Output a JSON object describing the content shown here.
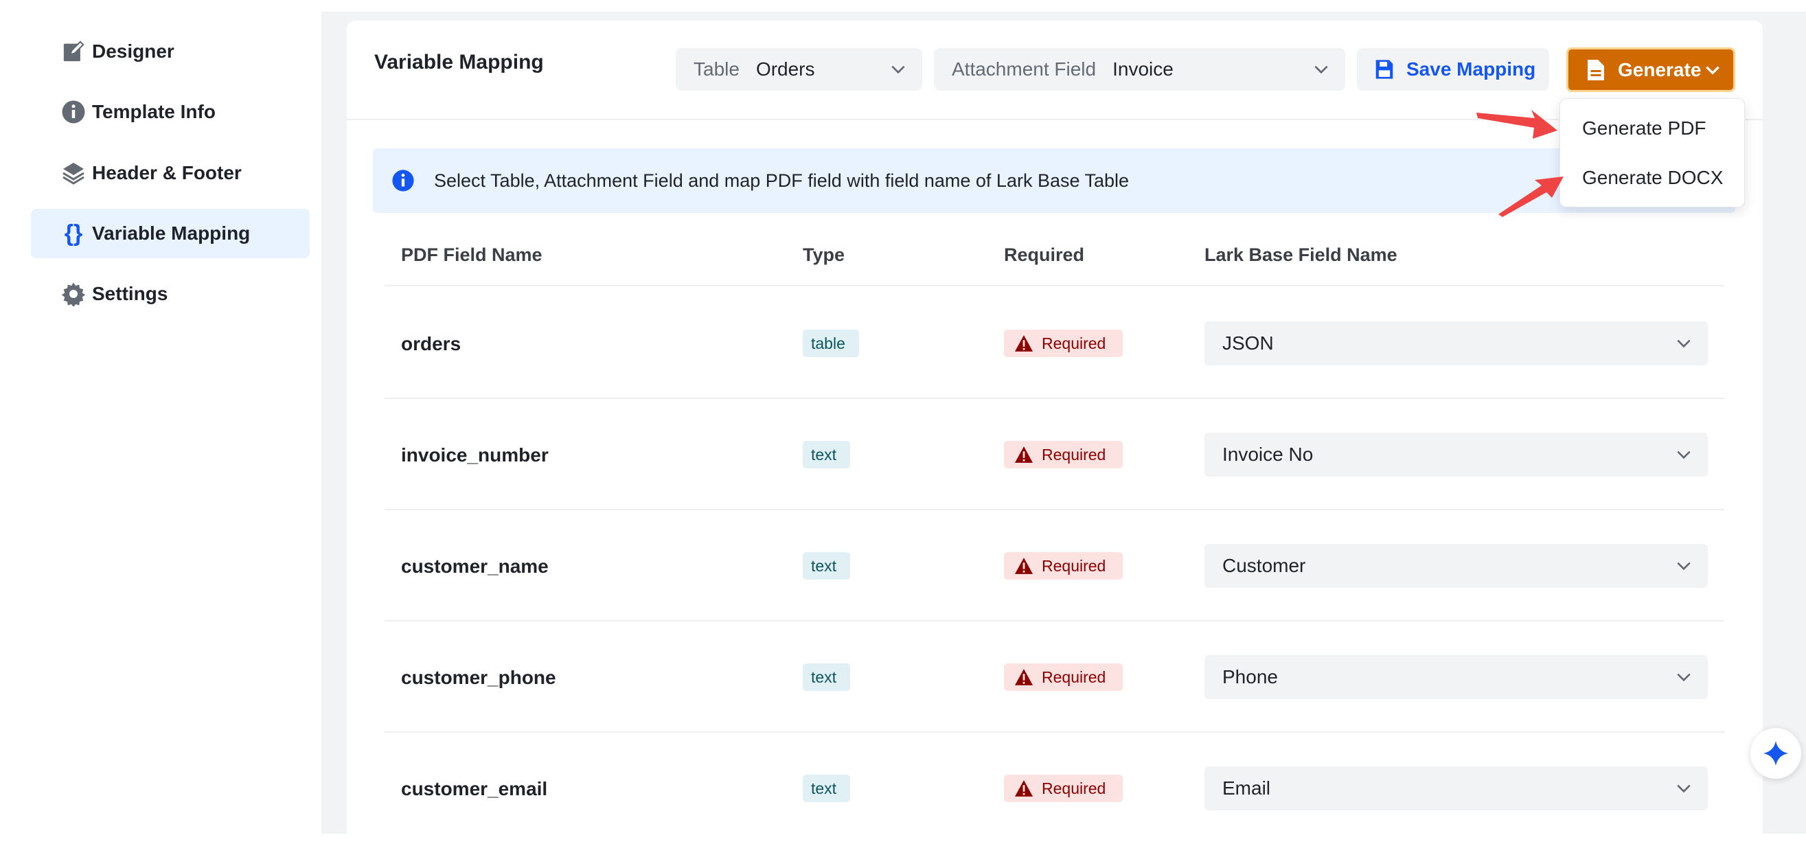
{
  "sidebar": {
    "items": [
      {
        "label": "Designer",
        "icon": "edit-icon"
      },
      {
        "label": "Template Info",
        "icon": "info-icon"
      },
      {
        "label": "Header & Footer",
        "icon": "layers-icon"
      },
      {
        "label": "Variable Mapping",
        "icon": "braces-icon",
        "active": true
      },
      {
        "label": "Settings",
        "icon": "gear-icon"
      }
    ]
  },
  "header": {
    "title": "Variable Mapping",
    "table_label": "Table",
    "table_value": "Orders",
    "attachment_label": "Attachment Field",
    "attachment_value": "Invoice",
    "save_label": "Save Mapping",
    "generate_label": "Generate"
  },
  "generate_menu": {
    "items": [
      "Generate PDF",
      "Generate DOCX"
    ]
  },
  "banner": {
    "text": "Select Table, Attachment Field and map PDF field with field name of Lark Base Table"
  },
  "table": {
    "columns": [
      "PDF Field Name",
      "Type",
      "Required",
      "Lark Base Field Name"
    ],
    "rows": [
      {
        "field": "orders",
        "type": "table",
        "required": "Required",
        "mapped": "JSON"
      },
      {
        "field": "invoice_number",
        "type": "text",
        "required": "Required",
        "mapped": "Invoice No"
      },
      {
        "field": "customer_name",
        "type": "text",
        "required": "Required",
        "mapped": "Customer"
      },
      {
        "field": "customer_phone",
        "type": "text",
        "required": "Required",
        "mapped": "Phone"
      },
      {
        "field": "customer_email",
        "type": "text",
        "required": "Required",
        "mapped": "Email"
      }
    ]
  },
  "colors": {
    "accent": "#1456f0",
    "generate": "#d06a00",
    "required_bg": "#fde2e2",
    "required_text": "#8b0000",
    "annotation_arrow": "#ef4444"
  }
}
